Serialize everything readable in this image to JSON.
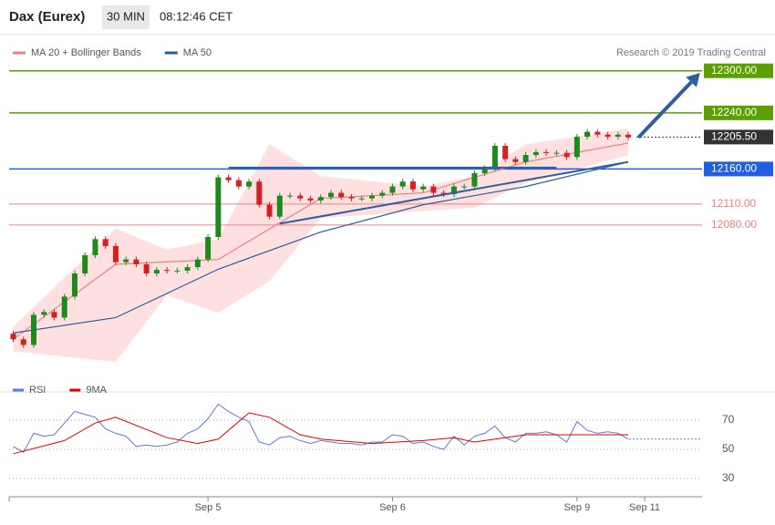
{
  "header": {
    "title": "Dax (Eurex)",
    "interval": "30 MIN",
    "time": "08:12:46 CET",
    "credit": "Research © 2019 Trading Central"
  },
  "chart_data": [
    {
      "type": "candlestick",
      "xlim": [
        -0.4,
        67.2
      ],
      "ylim": [
        11855,
        12310
      ],
      "candles": {
        "up_color": "#1e8a1e",
        "down_color": "#d42020",
        "x": [
          0,
          1,
          2,
          3,
          4,
          5,
          6,
          7,
          8,
          9,
          10,
          11,
          12,
          13,
          14,
          15,
          16,
          17,
          18,
          19,
          20,
          21,
          22,
          23,
          24,
          25,
          26,
          27,
          28,
          29,
          30,
          31,
          32,
          33,
          34,
          35,
          36,
          37,
          38,
          39,
          40,
          41,
          42,
          43,
          44,
          45,
          46,
          47,
          48,
          49,
          50,
          51,
          52,
          53,
          54,
          55,
          56,
          57,
          58,
          59,
          60
        ],
        "open": [
          11925,
          11917,
          11909,
          11952,
          11956,
          11948,
          11978,
          12011,
          12037,
          12060,
          12050,
          12027,
          12031,
          12024,
          12011,
          12016,
          12015,
          12015,
          12020,
          12031,
          12063,
          12148,
          12144,
          12135,
          12142,
          12109,
          12092,
          12122,
          12122,
          12118,
          12115,
          12120,
          12126,
          12120,
          12118,
          12118,
          12122,
          12126,
          12135,
          12142,
          12131,
          12135,
          12126,
          12124,
          12135,
          12135,
          12154,
          12161,
          12193,
          12174,
          12170,
          12180,
          12184,
          12183,
          12183,
          12177,
          12206,
          12213,
          12209,
          12206,
          12209
        ],
        "high": [
          11929,
          11921,
          11956,
          11960,
          11960,
          11982,
          12015,
          12041,
          12064,
          12064,
          12054,
          12035,
          12035,
          12028,
          12020,
          12020,
          12019,
          12024,
          12035,
          12067,
          12152,
          12152,
          12148,
          12146,
          12146,
          12113,
          12126,
          12126,
          12126,
          12122,
          12124,
          12130,
          12130,
          12124,
          12122,
          12126,
          12130,
          12139,
          12146,
          12146,
          12139,
          12139,
          12130,
          12139,
          12139,
          12158,
          12165,
          12197,
          12197,
          12178,
          12184,
          12188,
          12188,
          12187,
          12187,
          12210,
          12217,
          12217,
          12213,
          12213,
          12213
        ],
        "low": [
          11913,
          11905,
          11905,
          11948,
          11944,
          11944,
          11974,
          12007,
          12033,
          12046,
          12023,
          12023,
          12020,
          12007,
          12007,
          12011,
          12011,
          12011,
          12016,
          12027,
          12059,
          12140,
          12131,
          12131,
          12105,
          12088,
          12088,
          12118,
          12114,
          12111,
          12111,
          12116,
          12116,
          12114,
          12114,
          12114,
          12118,
          12122,
          12131,
          12127,
          12127,
          12122,
          12120,
          12120,
          12131,
          12131,
          12150,
          12157,
          12170,
          12166,
          12166,
          12176,
          12179,
          12179,
          12173,
          12173,
          12202,
          12205,
          12202,
          12202,
          12201
        ],
        "close": [
          11917,
          11909,
          11952,
          11956,
          11948,
          11978,
          12011,
          12037,
          12060,
          12050,
          12027,
          12031,
          12024,
          12011,
          12016,
          12015,
          12015,
          12020,
          12031,
          12063,
          12148,
          12144,
          12135,
          12142,
          12109,
          12092,
          12122,
          12122,
          12118,
          12115,
          12120,
          12126,
          12120,
          12118,
          12118,
          12122,
          12126,
          12135,
          12142,
          12131,
          12135,
          12126,
          12124,
          12135,
          12135,
          12154,
          12161,
          12193,
          12174,
          12170,
          12180,
          12184,
          12183,
          12183,
          12177,
          12206,
          12213,
          12209,
          12206,
          12209,
          12205
        ]
      },
      "band": {
        "color": "#ffd6d6",
        "x": [
          0,
          10,
          15,
          20,
          25,
          30,
          40,
          45,
          50,
          60
        ],
        "upper": [
          11935,
          12075,
          12045,
          12060,
          12195,
          12150,
          12135,
          12150,
          12195,
          12218
        ],
        "lower": [
          11900,
          11885,
          11980,
          11955,
          12000,
          12090,
          12100,
          12105,
          12140,
          12180
        ]
      },
      "series": [
        {
          "name": "MA 20 + Bollinger Bands",
          "color": "#f08080",
          "x": [
            0,
            10,
            20,
            30,
            40,
            50,
            60
          ],
          "values": [
            11917,
            12024,
            12031,
            12118,
            12126,
            12170,
            12197
          ]
        },
        {
          "name": "MA 50",
          "color": "#2e5e9e",
          "x": [
            0,
            10,
            20,
            30,
            40,
            50,
            60
          ],
          "values": [
            11926,
            11948,
            12017,
            12070,
            12109,
            12135,
            12170
          ]
        }
      ],
      "trend_lines": [
        {
          "color": "#2e5e9e",
          "x": [
            21,
            53
          ],
          "values": [
            12162,
            12162
          ]
        },
        {
          "color": "#2e5e9e",
          "x": [
            26,
            60
          ],
          "values": [
            12082,
            12170
          ]
        }
      ],
      "arrow": {
        "color": "#2e5e9e",
        "x": [
          61,
          67
        ],
        "values": [
          12205,
          12297
        ]
      },
      "levels": [
        {
          "value": 12300,
          "label": "12300.00",
          "color": "#5aa000",
          "style": "solid",
          "box": true
        },
        {
          "value": 12240,
          "label": "12240.00",
          "color": "#5aa000",
          "style": "solid",
          "box": true
        },
        {
          "value": 12205.5,
          "label": "12205.50",
          "color": "#333333",
          "style": "dotted",
          "box": true
        },
        {
          "value": 12160,
          "label": "12160.00",
          "color": "#1f5fe0",
          "style": "solid",
          "box": true
        },
        {
          "value": 12110,
          "label": "12110.00",
          "color": "#f08080",
          "style": "solid",
          "box": false
        },
        {
          "value": 12080,
          "label": "12080.00",
          "color": "#f08080",
          "style": "solid",
          "box": false
        }
      ]
    },
    {
      "type": "line",
      "xlim": [
        -0.4,
        67.2
      ],
      "ylim": [
        20,
        84
      ],
      "yticks": [
        30,
        50,
        70
      ],
      "grid": true,
      "xticks": [
        {
          "value": 19,
          "label": "Sep 5"
        },
        {
          "value": 37,
          "label": "Sep 6"
        },
        {
          "value": 55,
          "label": "Sep 9"
        },
        {
          "value": 61.6,
          "label": "Sep 11"
        }
      ],
      "current_level": {
        "value": 57,
        "color": "#5b7bd5"
      },
      "series": [
        {
          "name": "RSI",
          "color": "#5b7bd5",
          "x": [
            0,
            1,
            2,
            3,
            4,
            5,
            6,
            7,
            8,
            9,
            10,
            11,
            12,
            13,
            14,
            15,
            16,
            17,
            18,
            19,
            20,
            21,
            22,
            23,
            24,
            25,
            26,
            27,
            28,
            29,
            30,
            31,
            32,
            33,
            34,
            35,
            36,
            37,
            38,
            39,
            40,
            41,
            42,
            43,
            44,
            45,
            46,
            47,
            48,
            49,
            50,
            51,
            52,
            53,
            54,
            55,
            56,
            57,
            58,
            59,
            60
          ],
          "values": [
            52,
            48,
            61,
            59,
            60,
            68,
            76,
            74,
            72,
            64,
            61,
            59,
            52,
            53,
            52,
            53,
            55,
            61,
            64,
            71,
            81,
            76,
            72,
            69,
            55,
            53,
            58,
            59,
            56,
            54,
            56,
            55,
            54,
            54,
            53,
            55,
            55,
            60,
            59,
            54,
            55,
            52,
            50,
            59,
            53,
            59,
            61,
            66,
            58,
            55,
            61,
            61,
            62,
            60,
            55,
            69,
            63,
            61,
            62,
            61,
            57
          ]
        },
        {
          "name": "9MA",
          "color": "#e00000",
          "x": [
            0,
            5,
            8,
            10,
            15,
            18,
            20,
            23,
            25,
            28,
            30,
            35,
            40,
            43,
            45,
            50,
            55,
            60
          ],
          "values": [
            47,
            56,
            68,
            72,
            58,
            54,
            57,
            75,
            72,
            60,
            57,
            54,
            56,
            58,
            55,
            60,
            60,
            60
          ]
        }
      ]
    }
  ]
}
